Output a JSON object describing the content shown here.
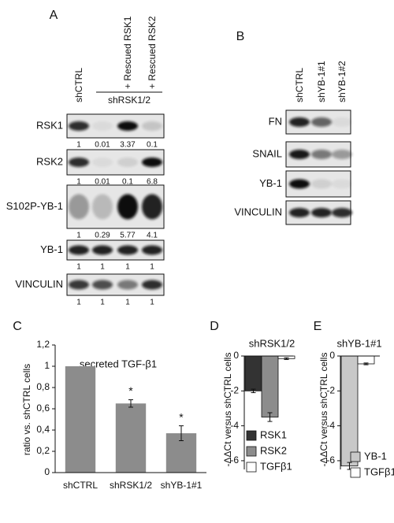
{
  "blots": [
    {
      "label": "A",
      "lanes": [
        "shCTRL",
        null,
        "+ Rescued RSK1",
        "+ Rescued RSK2"
      ],
      "group_label": "shRSK1/2",
      "rows": [
        {
          "name": "RSK1",
          "quant": [
            1,
            0.01,
            3.37,
            0.1
          ]
        },
        {
          "name": "RSK2",
          "quant": [
            1,
            0.01,
            0.1,
            6.8
          ]
        },
        {
          "name": "S102P-YB-1",
          "quant": [
            1,
            0.29,
            5.77,
            4.1
          ]
        },
        {
          "name": "YB-1",
          "quant": [
            1,
            1,
            1,
            1
          ]
        },
        {
          "name": "VINCULIN",
          "quant": [
            1,
            1,
            1,
            1
          ]
        }
      ]
    },
    {
      "label": "B",
      "lanes": [
        "shCTRL",
        "shYB-1#1",
        "shYB-1#2"
      ],
      "rows": [
        {
          "name": "FN"
        },
        {
          "name": "SNAIL"
        },
        {
          "name": "YB-1"
        },
        {
          "name": "VINCULIN"
        }
      ]
    }
  ],
  "chart_data": [
    {
      "type": "bar",
      "label": "C",
      "title": "secreted TGF-β1",
      "ylabel": "ratio vs. shCTRL cells",
      "categories": [
        "shCTRL",
        "shRSK1/2",
        "shYB-1#1"
      ],
      "values": [
        1,
        0.65,
        0.37
      ],
      "errors": [
        null,
        0.035,
        0.07
      ],
      "significance": [
        null,
        "*",
        "*"
      ],
      "color": "#8c8c8c",
      "ylim": [
        0,
        1.2
      ],
      "yticks": [
        0,
        {
          "value": 0.2,
          "label": "0,2"
        },
        {
          "value": 0.4,
          "label": "0,4"
        },
        {
          "value": 0.6,
          "label": "0,6"
        },
        {
          "value": 0.8,
          "label": "0,8"
        },
        1,
        {
          "value": 1.2,
          "label": "1,2"
        }
      ]
    },
    {
      "type": "bar",
      "label": "D",
      "title": "shRSK1/2",
      "ylabel": "-ΔΔCt versus shCTRL cells",
      "series": [
        {
          "name": "RSK1",
          "color": "#333333",
          "values": [
            -2
          ],
          "errors": [
            0.1
          ]
        },
        {
          "name": "RSK2",
          "color": "#8c8c8c",
          "values": [
            -3.5
          ],
          "errors": [
            0.25
          ]
        },
        {
          "name": "TGFβ1",
          "color": "#ffffff",
          "values": [
            -0.15
          ],
          "errors": [
            0.05
          ]
        }
      ],
      "ylim": [
        -6.5,
        0
      ],
      "yticks": [
        0,
        -2,
        -4,
        -6
      ],
      "legend": "lower left"
    },
    {
      "type": "bar",
      "label": "E",
      "title": "shYB-1#1",
      "ylabel": "-ΔΔCt versus shCTRL cells",
      "series": [
        {
          "name": "YB-1",
          "color": "#c8c8c8",
          "values": [
            -6.3
          ],
          "errors": [
            0.2
          ]
        },
        {
          "name": "TGFβ1",
          "color": "#ffffff",
          "values": [
            -0.45
          ],
          "errors": [
            0.05
          ]
        }
      ],
      "ylim": [
        -6.5,
        0
      ],
      "yticks": [
        0,
        -2,
        -4,
        -6
      ],
      "legend": "lower left"
    }
  ]
}
